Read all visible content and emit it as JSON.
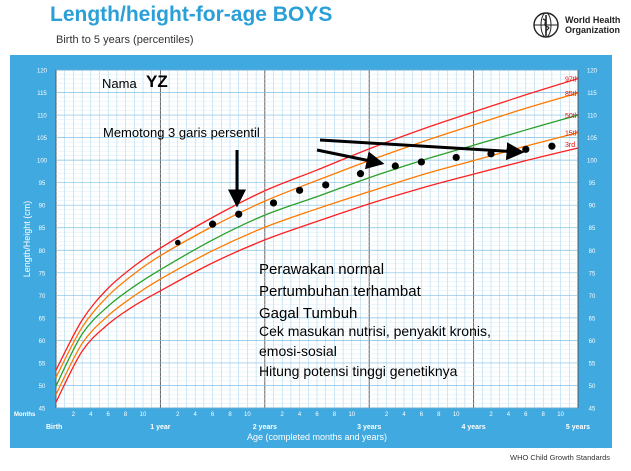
{
  "header": {
    "title": "Length/height-for-age BOYS",
    "subtitle": "Birth to 5 years (percentiles)",
    "who_line1": "World Health",
    "who_line2": "Organization"
  },
  "footer": "WHO Child Growth Standards",
  "colors": {
    "plot_bg": "#3fa9e0",
    "grid": "#ffffff",
    "p97": "#ff2020",
    "p85": "#ff7a00",
    "p50": "#2aa02a",
    "p15": "#ff7a00",
    "p3": "#ff2020",
    "label_red": "#e01010"
  },
  "chart_data": {
    "type": "line",
    "title": "Length/height-for-age BOYS",
    "subtitle": "Birth to 5 years (percentiles)",
    "xlabel": "Age (completed months and years)",
    "ylabel": "Length/Height (cm)",
    "xlim": [
      0,
      60
    ],
    "ylim": [
      45,
      120
    ],
    "row_label": "Months",
    "y_ticks": [
      45,
      50,
      55,
      60,
      65,
      70,
      75,
      80,
      85,
      90,
      95,
      100,
      105,
      110,
      115,
      120
    ],
    "year_labels": [
      {
        "month": 0,
        "label": "Birth"
      },
      {
        "month": 12,
        "label": "1 year"
      },
      {
        "month": 24,
        "label": "2 years"
      },
      {
        "month": 36,
        "label": "3 years"
      },
      {
        "month": 48,
        "label": "4 years"
      },
      {
        "month": 60,
        "label": "5 years"
      }
    ],
    "month_labels": [
      "2",
      "4",
      "6",
      "8",
      "10"
    ],
    "grid": true,
    "series": [
      {
        "name": "97th",
        "x": [
          0,
          3,
          6,
          9,
          12,
          18,
          24,
          30,
          36,
          42,
          48,
          54,
          60
        ],
        "values": [
          53.4,
          64.5,
          71.6,
          76.5,
          80.5,
          87.3,
          93.2,
          97.8,
          102.5,
          106.8,
          110.7,
          114.5,
          118.1
        ]
      },
      {
        "name": "85th",
        "x": [
          0,
          3,
          6,
          9,
          12,
          18,
          24,
          30,
          36,
          42,
          48,
          54,
          60
        ],
        "values": [
          51.8,
          62.9,
          69.9,
          74.8,
          78.8,
          85.3,
          90.9,
          95.5,
          99.9,
          104.0,
          107.8,
          111.5,
          114.9
        ]
      },
      {
        "name": "50th",
        "x": [
          0,
          3,
          6,
          9,
          12,
          18,
          24,
          30,
          36,
          42,
          48,
          54,
          60
        ],
        "values": [
          49.9,
          61.4,
          67.6,
          72.0,
          75.7,
          82.3,
          87.8,
          91.9,
          96.1,
          99.9,
          103.3,
          106.7,
          110.0
        ]
      },
      {
        "name": "15th",
        "x": [
          0,
          3,
          6,
          9,
          12,
          18,
          24,
          30,
          36,
          42,
          48,
          54,
          60
        ],
        "values": [
          48.0,
          59.3,
          65.5,
          69.9,
          73.6,
          79.9,
          85.1,
          89.2,
          93.0,
          96.7,
          99.9,
          103.1,
          106.1
        ]
      },
      {
        "name": "3rd",
        "x": [
          0,
          3,
          6,
          9,
          12,
          18,
          24,
          30,
          36,
          42,
          48,
          54,
          60
        ],
        "values": [
          46.3,
          57.6,
          63.6,
          67.7,
          71.0,
          77.2,
          82.3,
          86.4,
          90.3,
          93.8,
          96.9,
          99.9,
          102.7
        ]
      }
    ],
    "patient_points": {
      "x": [
        14,
        18,
        21,
        25,
        28,
        31,
        35,
        39,
        42,
        46,
        50,
        54,
        57
      ],
      "values": [
        81.7,
        85.8,
        88.0,
        90.5,
        93.3,
        94.5,
        97.0,
        98.7,
        99.6,
        100.6,
        101.4,
        102.4,
        103.1
      ]
    },
    "annotations": {
      "name_prefix": "Nama",
      "name": "YZ",
      "arrow_note": "Memotong 3 garis persentil",
      "notes": [
        "Perawakan normal",
        "Pertumbuhan terhambat",
        "Gagal Tumbuh",
        "Cek masukan nutrisi, penyakit kronis,",
        "emosi-sosial",
        "Hitung potensi tinggi genetiknya"
      ]
    }
  }
}
